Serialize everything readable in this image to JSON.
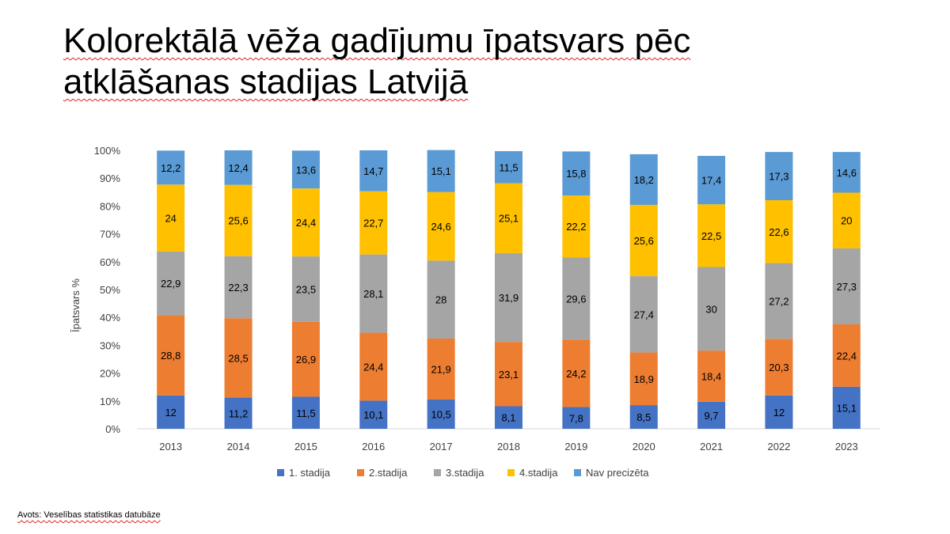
{
  "title": {
    "line1": "Kolorektālā vēža gadījumu īpatsvars pēc",
    "line2": "atklāšanas stadijas Latvijā"
  },
  "source": "Avots: Veselības statistikas datubāze",
  "chart_data": {
    "type": "bar",
    "stacked": true,
    "ylabel": "Īpatsvars %",
    "ylim": [
      0,
      100
    ],
    "y_ticks": [
      "0%",
      "10%",
      "20%",
      "30%",
      "40%",
      "50%",
      "60%",
      "70%",
      "80%",
      "90%",
      "100%"
    ],
    "categories": [
      "2013",
      "2014",
      "2015",
      "2016",
      "2017",
      "2018",
      "2019",
      "2020",
      "2021",
      "2022",
      "2023"
    ],
    "legend_position": "bottom",
    "series": [
      {
        "name": "1. stadija",
        "color": "#4472C4",
        "values": [
          12,
          11.2,
          11.5,
          10.1,
          10.5,
          8.1,
          7.8,
          8.5,
          9.7,
          12,
          15.1
        ],
        "labels": [
          "12",
          "11,2",
          "11,5",
          "10,1",
          "10,5",
          "8,1",
          "7,8",
          "8,5",
          "9,7",
          "12",
          "15,1"
        ]
      },
      {
        "name": "2.stadija",
        "color": "#ED7D31",
        "values": [
          28.8,
          28.5,
          26.9,
          24.4,
          21.9,
          23.1,
          24.2,
          18.9,
          18.4,
          20.3,
          22.4
        ],
        "labels": [
          "28,8",
          "28,5",
          "26,9",
          "24,4",
          "21,9",
          "23,1",
          "24,2",
          "18,9",
          "18,4",
          "20,3",
          "22,4"
        ]
      },
      {
        "name": "3.stadija",
        "color": "#A5A5A5",
        "values": [
          22.9,
          22.3,
          23.5,
          28.1,
          28,
          31.9,
          29.6,
          27.4,
          30,
          27.2,
          27.3
        ],
        "labels": [
          "22,9",
          "22,3",
          "23,5",
          "28,1",
          "28",
          "31,9",
          "29,6",
          "27,4",
          "30",
          "27,2",
          "27,3"
        ]
      },
      {
        "name": "4.stadija",
        "color": "#FFC000",
        "values": [
          24,
          25.6,
          24.4,
          22.7,
          24.6,
          25.1,
          22.2,
          25.6,
          22.5,
          22.6,
          20
        ],
        "labels": [
          "24",
          "25,6",
          "24,4",
          "22,7",
          "24,6",
          "25,1",
          "22,2",
          "25,6",
          "22,5",
          "22,6",
          "20"
        ]
      },
      {
        "name": "Nav precizēta",
        "color": "#5B9BD5",
        "values": [
          12.2,
          12.4,
          13.6,
          14.7,
          15.1,
          11.5,
          15.8,
          18.2,
          17.4,
          17.3,
          14.6
        ],
        "labels": [
          "12,2",
          "12,4",
          "13,6",
          "14,7",
          "15,1",
          "11,5",
          "15,8",
          "18,2",
          "17,4",
          "17,3",
          "14,6"
        ]
      }
    ]
  }
}
